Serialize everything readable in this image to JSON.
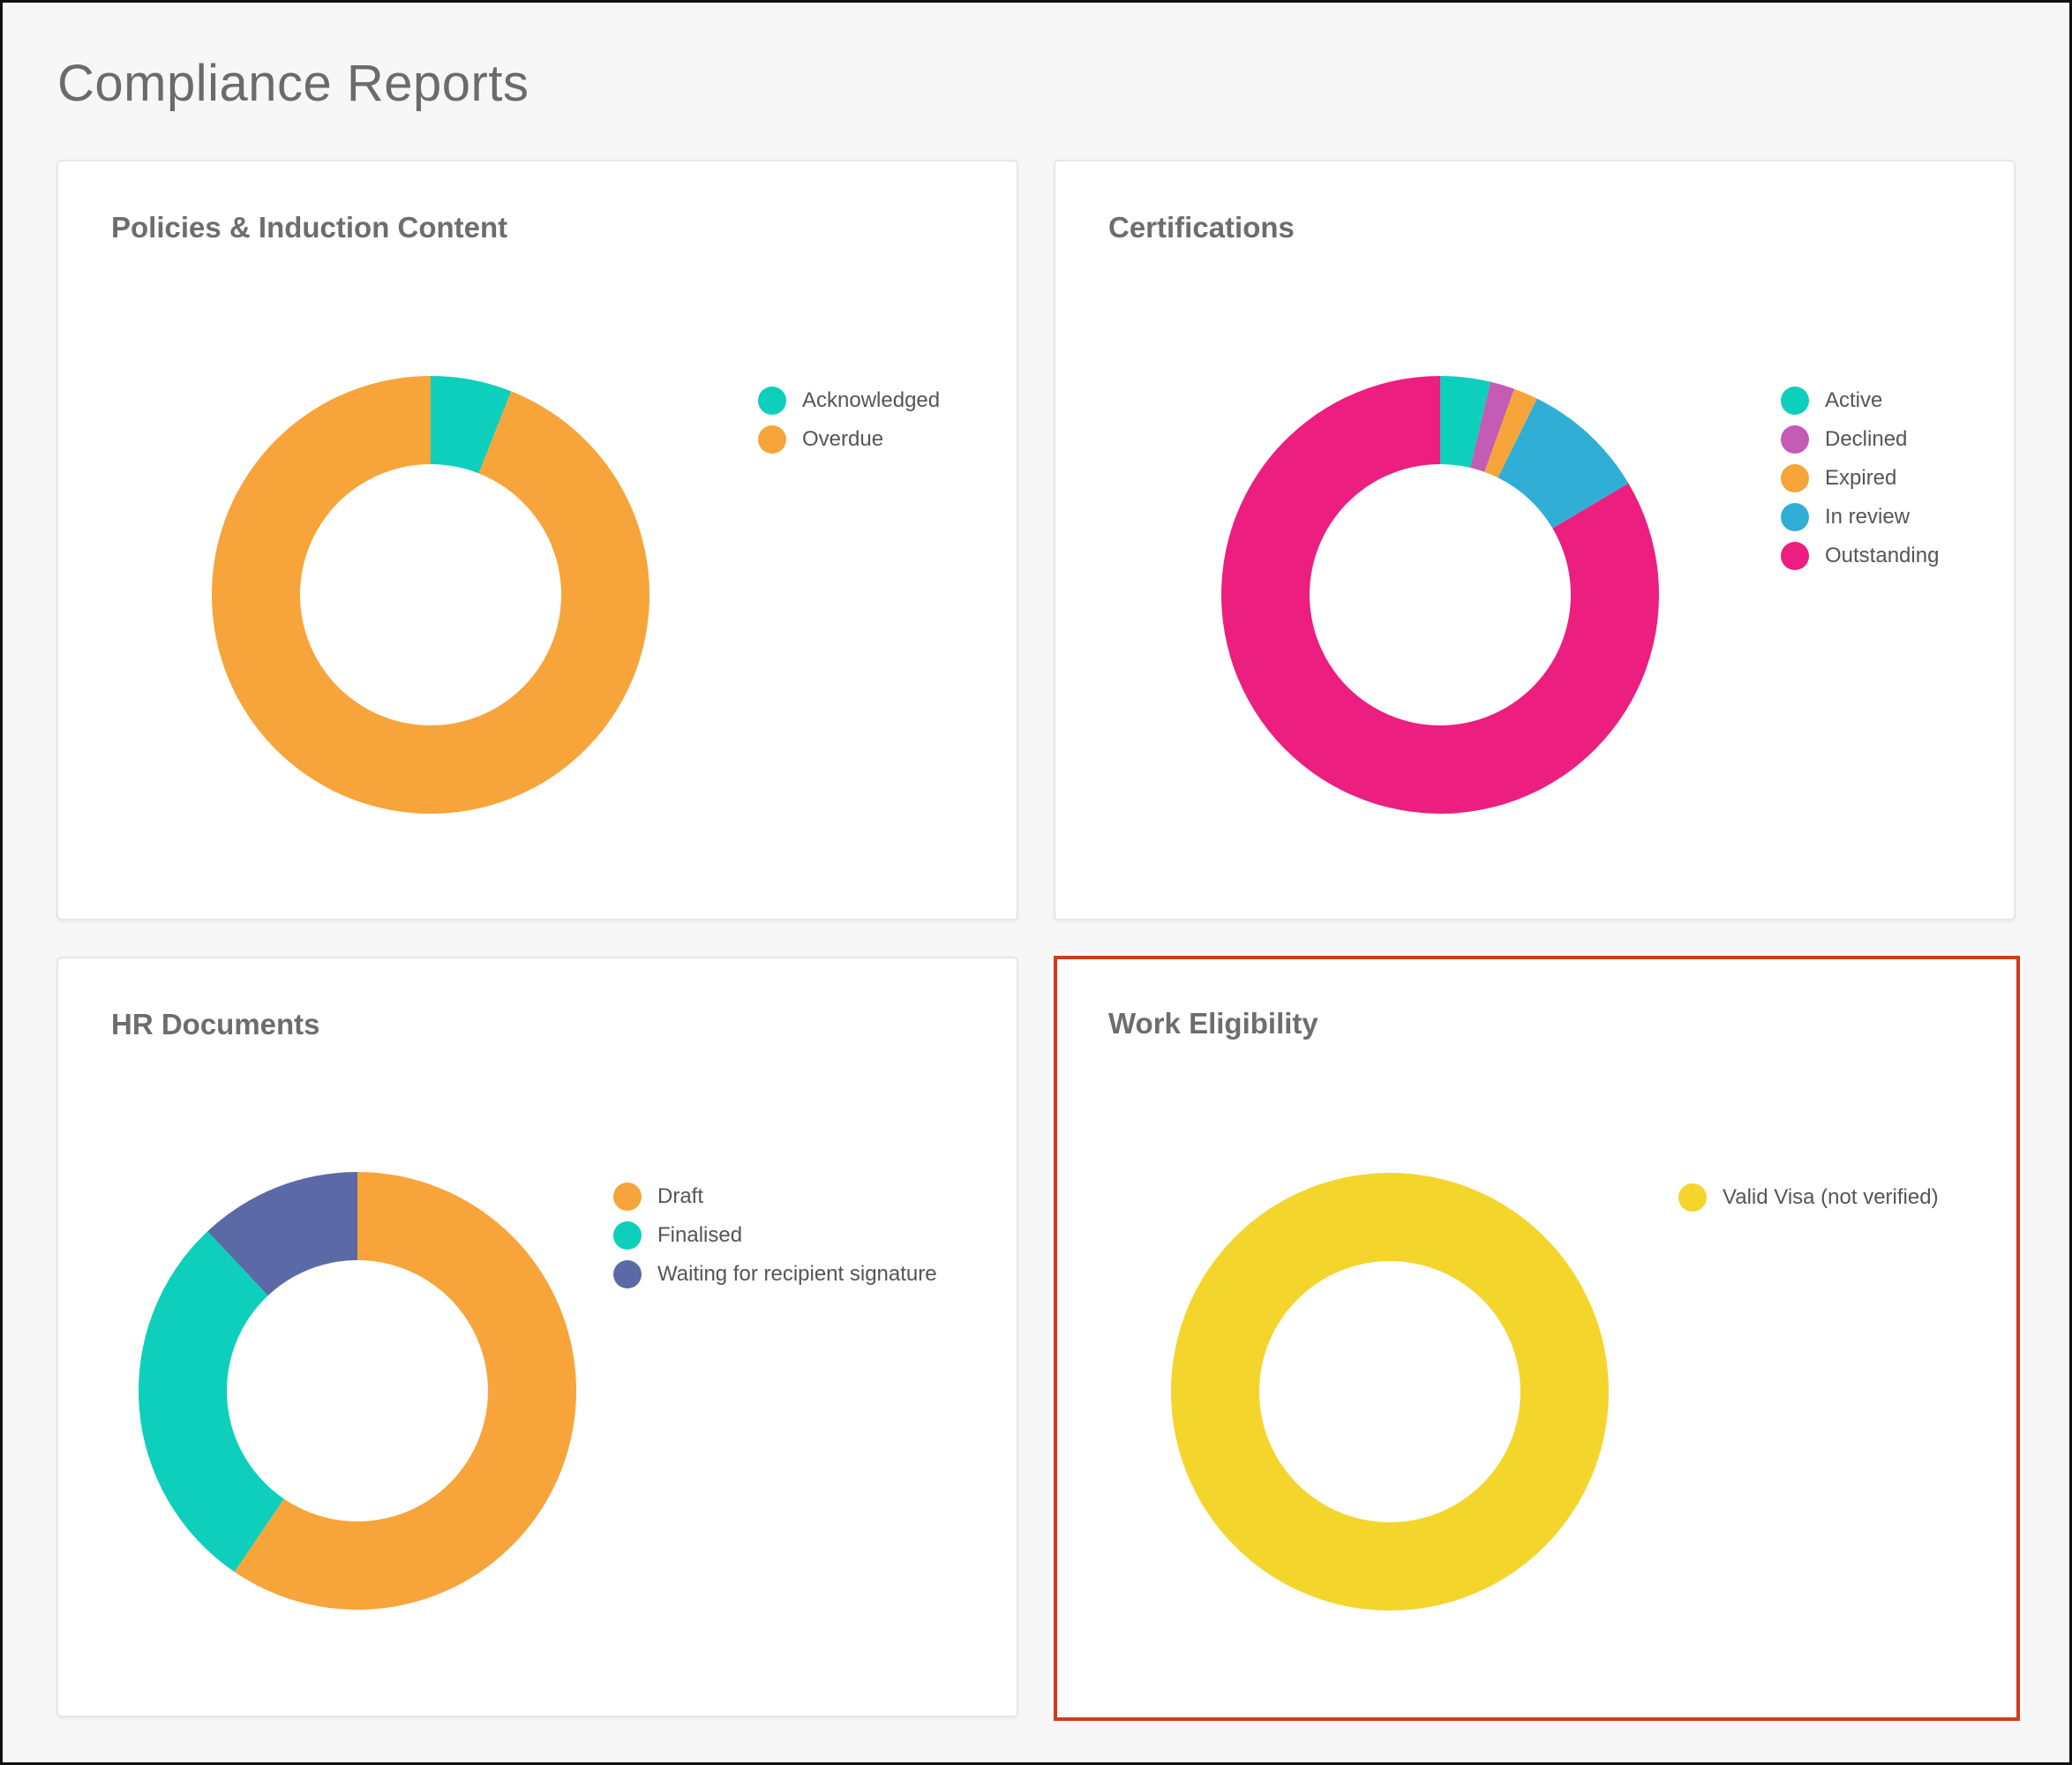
{
  "page": {
    "title": "Compliance Reports"
  },
  "cards": [
    {
      "title": "Policies & Induction Content",
      "highlighted": false,
      "chart_data": {
        "type": "pie",
        "title": "Policies & Induction Content",
        "labels": [
          "Acknowledged",
          "Overdue"
        ],
        "values": [
          6,
          94
        ],
        "colors": [
          "#0dcfbc",
          "#f7a43b"
        ],
        "legend": "right"
      }
    },
    {
      "title": "Certifications",
      "highlighted": false,
      "chart_data": {
        "type": "pie",
        "title": "Certifications",
        "labels": [
          "Active",
          "Declined",
          "Expired",
          "In review",
          "Outstanding"
        ],
        "values": [
          3.7,
          1.8,
          1.8,
          9.2,
          83.5
        ],
        "colors": [
          "#0dcfbc",
          "#c45bb4",
          "#f7a43b",
          "#31aed6",
          "#ec1e7f"
        ],
        "legend": "right"
      }
    },
    {
      "title": "HR Documents",
      "highlighted": false,
      "chart_data": {
        "type": "pie",
        "title": "HR Documents",
        "labels": [
          "Draft",
          "Finalised",
          "Waiting for recipient signature"
        ],
        "values": [
          59.5,
          28.5,
          12
        ],
        "colors": [
          "#f7a43b",
          "#0dcfbc",
          "#5b6aa6"
        ],
        "legend": "right"
      }
    },
    {
      "title": "Work Eligibility",
      "highlighted": true,
      "chart_data": {
        "type": "pie",
        "title": "Work Eligibility",
        "labels": [
          "Valid Visa (not verified)"
        ],
        "values": [
          100
        ],
        "colors": [
          "#f4d52c"
        ],
        "legend": "right"
      }
    }
  ]
}
